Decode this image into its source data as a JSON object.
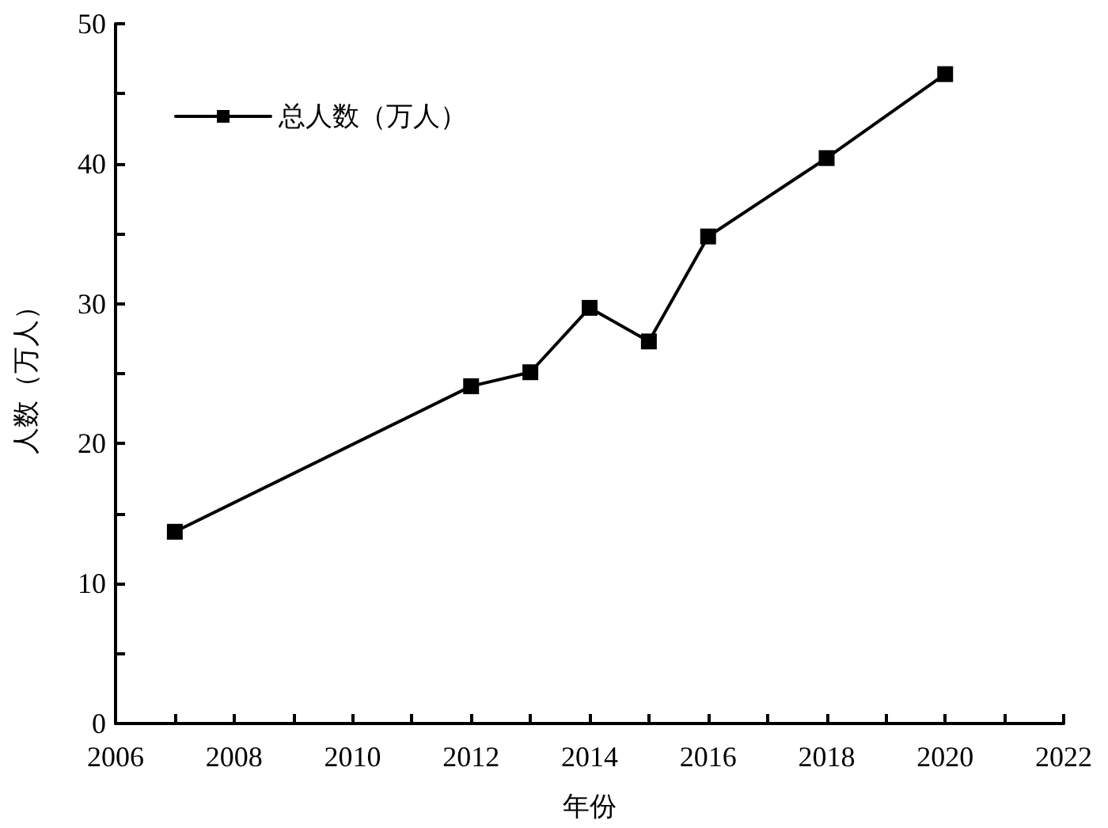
{
  "chart_data": {
    "type": "line",
    "xlabel": "年份",
    "ylabel": "人数（万人）",
    "x": [
      2007,
      2012,
      2013,
      2014,
      2015,
      2016,
      2018,
      2020
    ],
    "series": [
      {
        "name": "总人数（万人）",
        "color": "#000000",
        "values": [
          13.7,
          24.1,
          25.1,
          29.7,
          27.3,
          34.8,
          40.4,
          46.4
        ]
      }
    ],
    "xlim": [
      2006,
      2022
    ],
    "xticks": [
      2006,
      {
        "value": 2007,
        "label": null
      },
      2008,
      {
        "value": 2009,
        "label": null
      },
      2010,
      {
        "value": 2011,
        "label": null
      },
      2012,
      {
        "value": 2013,
        "label": null
      },
      2014,
      {
        "value": 2015,
        "label": null
      },
      2016,
      {
        "value": 2017,
        "label": null
      },
      2018,
      {
        "value": 2019,
        "label": null
      },
      2020,
      {
        "value": 2021,
        "label": null
      },
      2022
    ],
    "ylim": [
      0,
      50
    ],
    "yticks": [
      0,
      {
        "value": 5,
        "label": null
      },
      10,
      {
        "value": 15,
        "label": null
      },
      20,
      {
        "value": 25,
        "label": null
      },
      30,
      {
        "value": 35,
        "label": null
      },
      40,
      {
        "value": 45,
        "label": null
      },
      50
    ],
    "grid": false,
    "legend": "top left",
    "marker": "square",
    "line_style": "solid"
  }
}
